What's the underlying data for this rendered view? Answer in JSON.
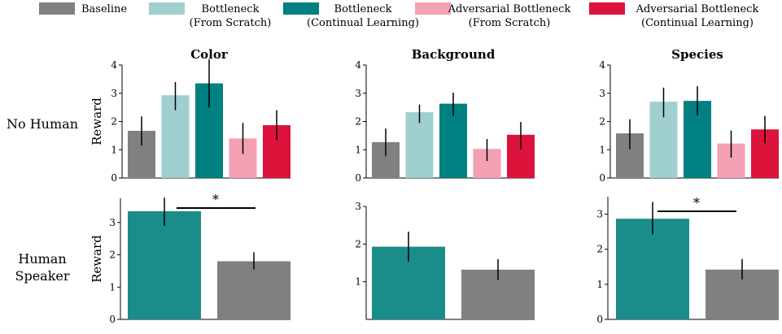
{
  "legend": [
    {
      "line1": "Baseline",
      "line2": "",
      "color": "#808080"
    },
    {
      "line1": "Bottleneck",
      "line2": "(From Scratch)",
      "color": "#9fcfcf"
    },
    {
      "line1": "Bottleneck",
      "line2": "(Continual Learning)",
      "color": "#008080"
    },
    {
      "line1": "Adversarial Bottleneck",
      "line2": "(From Scratch)",
      "color": "#f4a1b4"
    },
    {
      "line1": "Adversarial Bottleneck",
      "line2": "(Continual Learning)",
      "color": "#dc143c"
    }
  ],
  "row_labels": {
    "row1": "No Human",
    "row2_line1": "Human",
    "row2_line2": "Speaker"
  },
  "ylabel": "Reward",
  "chart_data": [
    {
      "type": "bar",
      "title": "Color",
      "panel": "No Human",
      "ylim": [
        0,
        4
      ],
      "yticks": [
        0,
        1,
        2,
        3,
        4
      ],
      "ylabel": "Reward",
      "bars": [
        {
          "value": 1.67,
          "err": [
            1.15,
            2.18
          ],
          "color": "#808080"
        },
        {
          "value": 2.93,
          "err": [
            2.4,
            3.4
          ],
          "color": "#9fcfcf"
        },
        {
          "value": 3.35,
          "err": [
            2.5,
            4.2
          ],
          "color": "#008080"
        },
        {
          "value": 1.4,
          "err": [
            0.85,
            1.95
          ],
          "color": "#f4a1b4"
        },
        {
          "value": 1.87,
          "err": [
            1.33,
            2.4
          ],
          "color": "#dc143c"
        }
      ]
    },
    {
      "type": "bar",
      "title": "Background",
      "panel": "No Human",
      "ylim": [
        0,
        4
      ],
      "yticks": [
        0,
        1,
        2,
        3,
        4
      ],
      "ylabel": "",
      "bars": [
        {
          "value": 1.27,
          "err": [
            0.77,
            1.75
          ],
          "color": "#808080"
        },
        {
          "value": 2.33,
          "err": [
            1.95,
            2.6
          ],
          "color": "#9fcfcf"
        },
        {
          "value": 2.63,
          "err": [
            2.2,
            3.02
          ],
          "color": "#008080"
        },
        {
          "value": 1.03,
          "err": [
            0.6,
            1.38
          ],
          "color": "#f4a1b4"
        },
        {
          "value": 1.53,
          "err": [
            1.02,
            1.98
          ],
          "color": "#dc143c"
        }
      ]
    },
    {
      "type": "bar",
      "title": "Species",
      "panel": "No Human",
      "ylim": [
        0,
        4
      ],
      "yticks": [
        0,
        1,
        2,
        3,
        4
      ],
      "ylabel": "",
      "bars": [
        {
          "value": 1.58,
          "err": [
            1.02,
            2.08
          ],
          "color": "#808080"
        },
        {
          "value": 2.7,
          "err": [
            2.15,
            3.2
          ],
          "color": "#9fcfcf"
        },
        {
          "value": 2.73,
          "err": [
            2.22,
            3.25
          ],
          "color": "#008080"
        },
        {
          "value": 1.22,
          "err": [
            0.72,
            1.68
          ],
          "color": "#f4a1b4"
        },
        {
          "value": 1.72,
          "err": [
            1.23,
            2.2
          ],
          "color": "#dc143c"
        }
      ]
    },
    {
      "type": "bar",
      "title": "",
      "panel": "Human Speaker",
      "ylim": [
        0,
        3.75
      ],
      "yticks": [
        0,
        1,
        2,
        3
      ],
      "ylabel": "Reward",
      "significance": "*",
      "bars": [
        {
          "value": 3.35,
          "err": [
            2.9,
            3.77
          ],
          "color": "#1a8c8a"
        },
        {
          "value": 1.8,
          "err": [
            1.55,
            2.08
          ],
          "color": "#808080"
        }
      ]
    },
    {
      "type": "bar",
      "title": "",
      "panel": "Human Speaker",
      "ylim": [
        0,
        3.0
      ],
      "yticks": [
        1,
        2,
        3
      ],
      "ylabel": "",
      "bars": [
        {
          "value": 1.93,
          "err": [
            1.53,
            2.33
          ],
          "color": "#1a8c8a"
        },
        {
          "value": 1.32,
          "err": [
            1.05,
            1.6
          ],
          "color": "#808080"
        }
      ]
    },
    {
      "type": "bar",
      "title": "",
      "panel": "Human Speaker",
      "ylim": [
        0,
        3.5
      ],
      "yticks": [
        0,
        1,
        2,
        3
      ],
      "ylabel": "",
      "significance": "*",
      "bars": [
        {
          "value": 2.87,
          "err": [
            2.42,
            3.35
          ],
          "color": "#1a8c8a"
        },
        {
          "value": 1.42,
          "err": [
            1.14,
            1.72
          ],
          "color": "#808080"
        }
      ]
    }
  ]
}
